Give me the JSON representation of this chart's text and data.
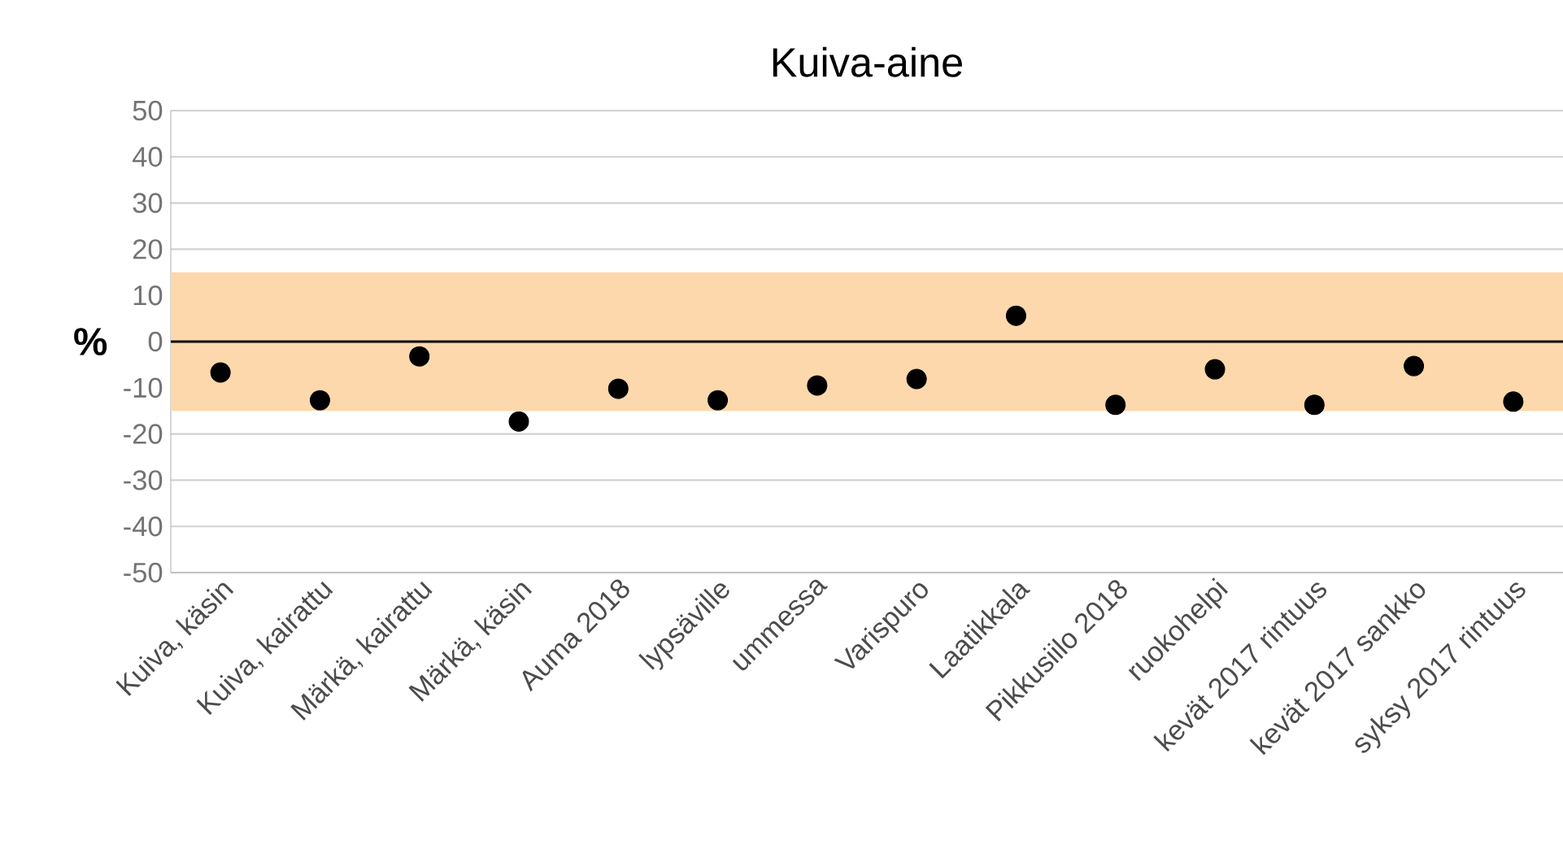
{
  "chart_data": {
    "type": "scatter",
    "title": "Kuiva-aine",
    "ylabel": "%",
    "categories": [
      "Kuiva, käsin",
      "Kuiva, kairattu",
      "Märkä, kairattu",
      "Märkä, käsin",
      "Auma 2018",
      "lypsäville",
      "ummessa",
      "Varispuro",
      "Laatikkala",
      "Pikkusiilo 2018",
      "ruokohelpi",
      "kevät 2017 rintuus",
      "kevät 2017 sankko",
      "syksy 2017 rintuus"
    ],
    "series": [
      {
        "color": "#000000",
        "values": [
          -6.7,
          -12.7,
          -3.2,
          -17.3,
          -10.2,
          -12.7,
          -9.5,
          -8.1,
          5.6,
          -13.7,
          -6.0,
          -13.7,
          -5.3,
          -13.0
        ]
      }
    ],
    "ylim": [
      -50,
      50
    ],
    "yticks": [
      -50,
      -40,
      -30,
      -20,
      -10,
      0,
      10,
      20,
      30,
      40,
      50
    ],
    "grid": "y",
    "marker": "circle",
    "ref_lines": [
      {
        "axis": "y",
        "value": 0,
        "color": "#000000"
      }
    ],
    "bands": [
      {
        "axis": "y",
        "from": -15,
        "to": 15,
        "color": "#fdd8ac"
      }
    ]
  }
}
